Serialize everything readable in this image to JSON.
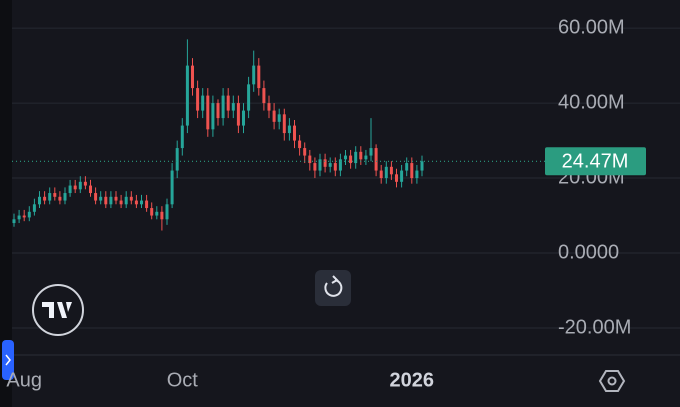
{
  "chart_data": {
    "type": "candlestick",
    "categories": [
      null,
      null,
      "Aug",
      null,
      null,
      null,
      null,
      null,
      null,
      null,
      null,
      null,
      null,
      null,
      null,
      null,
      null,
      null,
      null,
      null,
      null,
      null,
      null,
      null,
      null,
      null,
      null,
      null,
      null,
      null,
      null,
      null,
      null,
      "Oct",
      null,
      null,
      null,
      null,
      null,
      null,
      null,
      null,
      null,
      null,
      null,
      null,
      null,
      null,
      null,
      null,
      null,
      null,
      null,
      null,
      null,
      null,
      null,
      null,
      null,
      null,
      null,
      null,
      null,
      null,
      null,
      null,
      null,
      null,
      null,
      null,
      null,
      null,
      null,
      null,
      null,
      null,
      null,
      null,
      "2026",
      null,
      null
    ],
    "open": [
      8,
      9,
      10,
      9.5,
      11,
      13,
      15,
      14,
      16,
      15,
      14,
      16,
      18,
      17,
      19,
      18,
      16,
      14,
      15,
      13,
      15,
      14,
      13,
      15,
      14,
      13,
      14,
      12,
      10,
      11,
      9,
      13,
      22,
      28,
      34,
      50,
      44,
      38,
      42,
      33,
      40,
      36,
      42,
      38,
      40,
      34,
      38,
      45,
      50,
      44,
      40,
      38,
      35,
      37,
      32,
      34,
      30,
      28,
      26,
      24,
      22,
      25,
      23,
      24,
      22,
      25,
      26,
      24,
      27,
      25,
      26,
      28,
      22,
      20,
      23,
      21,
      19,
      22,
      24,
      20,
      22
    ],
    "high": [
      10.5,
      11.5,
      11.5,
      12.5,
      14.5,
      16.5,
      16.5,
      17.5,
      17.5,
      16.5,
      17.5,
      19.5,
      19.5,
      20.5,
      20.5,
      19.5,
      17.5,
      16.5,
      16.5,
      16.5,
      16.5,
      15.5,
      16.5,
      16.5,
      15.5,
      15.5,
      15.5,
      13.5,
      12.5,
      12.5,
      14.5,
      24,
      30,
      36,
      57,
      52,
      46,
      44,
      44,
      42,
      41,
      44,
      44,
      42,
      42,
      40,
      47,
      54,
      52,
      46,
      42,
      40,
      38.5,
      38.5,
      36,
      35.5,
      31.5,
      29.5,
      27.5,
      25.5,
      26.5,
      26.5,
      25.5,
      25.5,
      26.5,
      27.5,
      27.5,
      28.5,
      28.5,
      27.5,
      36,
      29,
      23.5,
      24.5,
      24.5,
      22.5,
      23.5,
      25.5,
      25.5,
      23.5,
      26
    ],
    "low": [
      7,
      8,
      8.5,
      8.5,
      10,
      12,
      13,
      13,
      14,
      13,
      13,
      15,
      16,
      16,
      17,
      15,
      13,
      13,
      12,
      12,
      13,
      12,
      12,
      13,
      12,
      12,
      11,
      9,
      9,
      6,
      7.5,
      12,
      20,
      26,
      32,
      42,
      36,
      36,
      31,
      31,
      34,
      34,
      36,
      36,
      32,
      32,
      36,
      43,
      42,
      38,
      36,
      33,
      33,
      30,
      30,
      28,
      26,
      24,
      22,
      20,
      20.5,
      21.5,
      21.5,
      20.5,
      20.5,
      23.5,
      22.5,
      22.5,
      23.5,
      23.5,
      24.5,
      20.5,
      18.5,
      18.5,
      19.5,
      17.5,
      17.5,
      20.5,
      18.5,
      18.5,
      20.5
    ],
    "close": [
      9,
      10,
      9.5,
      11,
      13,
      15,
      14,
      16,
      15,
      14,
      16,
      18,
      17,
      19,
      18,
      16,
      14,
      15,
      13,
      15,
      14,
      13,
      15,
      14,
      13,
      14,
      12,
      10,
      11,
      9,
      13,
      22,
      28,
      34,
      50,
      44,
      38,
      42,
      33,
      40,
      36,
      42,
      38,
      40,
      34,
      38,
      45,
      50,
      44,
      40,
      38,
      35,
      37,
      32,
      34,
      30,
      28,
      26,
      24,
      22,
      25,
      23,
      24,
      22,
      25,
      26,
      24,
      27,
      25,
      26,
      28,
      22,
      20,
      23,
      21,
      19,
      22,
      24,
      20,
      22,
      24.47
    ],
    "up_color": "#26a69a",
    "down_color": "#ef5350",
    "ylim": [
      -27.2,
      67.5
    ],
    "yticks": [
      {
        "value": 60,
        "label": "60.00M"
      },
      {
        "value": 40,
        "label": "40.00M"
      },
      {
        "value": 20,
        "label": "20.00M"
      },
      {
        "value": 0,
        "label": "0.0000"
      },
      {
        "value": -20,
        "label": "-20.00M"
      }
    ],
    "grid": true,
    "price_line": {
      "value": 24.47,
      "label": "24.47M",
      "color": "#2b9c80"
    }
  }
}
